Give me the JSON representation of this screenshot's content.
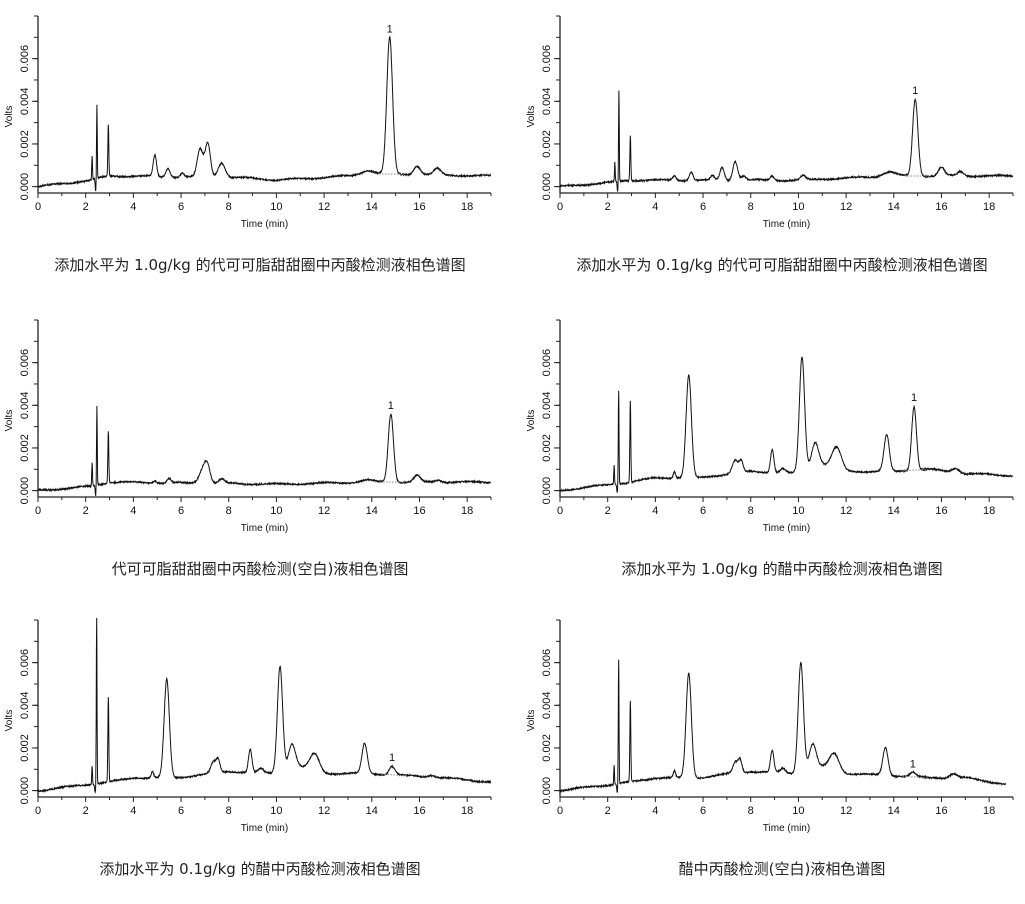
{
  "chart_data": [
    {
      "type": "line",
      "title": "添加水平为 1.0g/kg 的代可可脂甜甜圈中丙酸检测液相色谱图",
      "xlabel": "Time (min)",
      "ylabel": "Volts",
      "xlim": [
        0,
        19
      ],
      "ylim": [
        -0.0003,
        0.008
      ],
      "xticks": [
        0,
        2,
        4,
        6,
        8,
        10,
        12,
        14,
        16,
        18
      ],
      "yticks": [
        "0.000",
        "0.002",
        "0.004",
        "0.006"
      ],
      "end_time": 19,
      "peak_label": {
        "text": "1",
        "time": 14.75
      },
      "baseline": [
        [
          0,
          0
        ],
        [
          2.2,
          0.0003
        ],
        [
          3,
          0.0005
        ],
        [
          9,
          0.0004
        ],
        [
          10,
          0.0003
        ],
        [
          13,
          0.0005
        ],
        [
          14.3,
          0.0006
        ],
        [
          19,
          0.0005
        ]
      ],
      "peaks": [
        [
          2.27,
          0.0011,
          0.015
        ],
        [
          2.42,
          -0.0006,
          0.02
        ],
        [
          2.47,
          0.0035,
          0.015
        ],
        [
          2.95,
          0.0024,
          0.02
        ],
        [
          4.9,
          0.001,
          0.07
        ],
        [
          5.45,
          0.0004,
          0.09
        ],
        [
          6.05,
          0.0002,
          0.07
        ],
        [
          6.8,
          0.0013,
          0.12
        ],
        [
          7.12,
          0.0016,
          0.11
        ],
        [
          7.7,
          0.0007,
          0.15
        ],
        [
          13.8,
          0.0002,
          0.25
        ],
        [
          14.75,
          0.0064,
          0.12
        ],
        [
          15.9,
          0.0004,
          0.14
        ],
        [
          16.75,
          0.0003,
          0.14
        ]
      ]
    },
    {
      "type": "line",
      "title": "添加水平为 0.1g/kg 的代可可脂甜甜圈中丙酸检测液相色谱图",
      "xlabel": "Time (min)",
      "ylabel": "Volts",
      "xlim": [
        0,
        19
      ],
      "ylim": [
        -0.0003,
        0.008
      ],
      "xticks": [
        0,
        2,
        4,
        6,
        8,
        10,
        12,
        14,
        16,
        18
      ],
      "yticks": [
        "0.000",
        "0.002",
        "0.004",
        "0.006"
      ],
      "end_time": 19,
      "peak_label": {
        "text": "1",
        "time": 14.9
      },
      "baseline": [
        [
          0,
          0
        ],
        [
          2.2,
          0.0002
        ],
        [
          3,
          0.0003
        ],
        [
          10,
          0.0003
        ],
        [
          14,
          0.0005
        ],
        [
          19,
          0.0005
        ]
      ],
      "peaks": [
        [
          2.3,
          0.0009,
          0.015
        ],
        [
          2.42,
          -0.0005,
          0.02
        ],
        [
          2.47,
          0.0043,
          0.015
        ],
        [
          2.95,
          0.0021,
          0.02
        ],
        [
          4.8,
          0.0002,
          0.07
        ],
        [
          5.5,
          0.0004,
          0.08
        ],
        [
          6.4,
          0.0002,
          0.08
        ],
        [
          6.8,
          0.0006,
          0.09
        ],
        [
          7.35,
          0.0009,
          0.1
        ],
        [
          7.7,
          0.0002,
          0.1
        ],
        [
          8.9,
          0.0002,
          0.08
        ],
        [
          10.2,
          0.0002,
          0.1
        ],
        [
          13.8,
          0.0002,
          0.25
        ],
        [
          14.9,
          0.0036,
          0.11
        ],
        [
          16,
          0.0004,
          0.13
        ],
        [
          16.8,
          0.0002,
          0.13
        ]
      ]
    },
    {
      "type": "line",
      "title": "代可可脂甜甜圈中丙酸检测(空白)液相色谱图",
      "xlabel": "Time (min)",
      "ylabel": "Volts",
      "xlim": [
        0,
        19
      ],
      "ylim": [
        -0.0003,
        0.008
      ],
      "xticks": [
        0,
        2,
        4,
        6,
        8,
        10,
        12,
        14,
        16,
        18
      ],
      "yticks": [
        "0.000",
        "0.002",
        "0.004",
        "0.006"
      ],
      "end_time": 19,
      "peak_label": {
        "text": "1",
        "time": 14.8
      },
      "baseline": [
        [
          0,
          0
        ],
        [
          2.2,
          0.0002
        ],
        [
          3,
          0.0004
        ],
        [
          10,
          0.0003
        ],
        [
          14,
          0.0004
        ],
        [
          19,
          0.0004
        ]
      ],
      "peaks": [
        [
          2.27,
          0.0011,
          0.015
        ],
        [
          2.42,
          -0.0005,
          0.02
        ],
        [
          2.47,
          0.0037,
          0.015
        ],
        [
          2.95,
          0.0024,
          0.02
        ],
        [
          4.9,
          0.0001,
          0.07
        ],
        [
          5.5,
          0.0002,
          0.08
        ],
        [
          6.9,
          0.0006,
          0.15
        ],
        [
          7.1,
          0.0008,
          0.12
        ],
        [
          7.7,
          0.0002,
          0.12
        ],
        [
          13.8,
          0.0001,
          0.25
        ],
        [
          14.8,
          0.0032,
          0.11
        ],
        [
          15.9,
          0.0003,
          0.13
        ],
        [
          16.8,
          0.0001,
          0.13
        ]
      ]
    },
    {
      "type": "line",
      "title": "添加水平为 1.0g/kg 的醋中丙酸检测液相色谱图",
      "xlabel": "Time (min)",
      "ylabel": "Volts",
      "xlim": [
        0,
        19
      ],
      "ylim": [
        -0.0003,
        0.008
      ],
      "xticks": [
        0,
        2,
        4,
        6,
        8,
        10,
        12,
        14,
        16,
        18
      ],
      "yticks": [
        "0.000",
        "0.002",
        "0.004",
        "0.006"
      ],
      "end_time": 19,
      "peak_label": {
        "text": "1",
        "time": 14.85
      },
      "baseline": [
        [
          0,
          0
        ],
        [
          2.2,
          0.0003
        ],
        [
          3,
          0.0004
        ],
        [
          4,
          0.0006
        ],
        [
          5.8,
          0.0006
        ],
        [
          6.5,
          0.0007
        ],
        [
          8,
          0.0009
        ],
        [
          10,
          0.0008
        ],
        [
          11,
          0.0012
        ],
        [
          12,
          0.0009
        ],
        [
          14,
          0.0009
        ],
        [
          15.5,
          0.001
        ],
        [
          17,
          0.0008
        ],
        [
          19,
          0.0007
        ]
      ],
      "peaks": [
        [
          2.27,
          0.0009,
          0.015
        ],
        [
          2.4,
          -0.0004,
          0.02
        ],
        [
          2.46,
          0.0044,
          0.015
        ],
        [
          2.95,
          0.0038,
          0.02
        ],
        [
          4.8,
          0.0003,
          0.05
        ],
        [
          5.4,
          0.0048,
          0.11
        ],
        [
          7.35,
          0.0006,
          0.12
        ],
        [
          7.6,
          0.0005,
          0.08
        ],
        [
          8.9,
          0.0011,
          0.07
        ],
        [
          9.35,
          0.0002,
          0.1
        ],
        [
          10.15,
          0.0054,
          0.11
        ],
        [
          10.7,
          0.0012,
          0.15
        ],
        [
          11.6,
          0.001,
          0.2
        ],
        [
          13.7,
          0.0017,
          0.11
        ],
        [
          14.85,
          0.003,
          0.1
        ],
        [
          16.6,
          0.0002,
          0.15
        ]
      ]
    },
    {
      "type": "line",
      "title": "添加水平为 0.1g/kg 的醋中丙酸检测液相色谱图",
      "xlabel": "Time (min)",
      "ylabel": "Volts",
      "xlim": [
        0,
        19
      ],
      "ylim": [
        -0.0003,
        0.008
      ],
      "xticks": [
        0,
        2,
        4,
        6,
        8,
        10,
        12,
        14,
        16,
        18
      ],
      "yticks": [
        "0.000",
        "0.002",
        "0.004",
        "0.006"
      ],
      "end_time": 19,
      "peak_label": {
        "text": "1",
        "time": 14.85
      },
      "baseline": [
        [
          0,
          0
        ],
        [
          2.2,
          0.0003
        ],
        [
          3,
          0.0004
        ],
        [
          4,
          0.0006
        ],
        [
          5.8,
          0.0006
        ],
        [
          6.5,
          0.0007
        ],
        [
          8,
          0.0009
        ],
        [
          10,
          0.0008
        ],
        [
          11,
          0.0011
        ],
        [
          12,
          0.0008
        ],
        [
          14,
          0.0008
        ],
        [
          15.5,
          0.0007
        ],
        [
          17,
          0.0006
        ],
        [
          19,
          0.0004
        ]
      ],
      "peaks": [
        [
          2.27,
          0.0009,
          0.015
        ],
        [
          2.4,
          -0.0004,
          0.02
        ],
        [
          2.46,
          0.0078,
          0.015
        ],
        [
          2.95,
          0.004,
          0.02
        ],
        [
          4.8,
          0.0003,
          0.05
        ],
        [
          5.4,
          0.0046,
          0.11
        ],
        [
          7.35,
          0.0005,
          0.1
        ],
        [
          7.55,
          0.0006,
          0.08
        ],
        [
          8.9,
          0.0011,
          0.07
        ],
        [
          9.35,
          0.0002,
          0.1
        ],
        [
          10.15,
          0.005,
          0.11
        ],
        [
          10.65,
          0.0012,
          0.15
        ],
        [
          11.6,
          0.0008,
          0.2
        ],
        [
          13.7,
          0.0014,
          0.11
        ],
        [
          14.85,
          0.0004,
          0.12
        ],
        [
          16.5,
          0.0001,
          0.15
        ]
      ]
    },
    {
      "type": "line",
      "title": "醋中丙酸检测(空白)液相色谱图",
      "xlabel": "Time (min)",
      "ylabel": "Volts",
      "xlim": [
        0,
        19
      ],
      "ylim": [
        -0.0003,
        0.008
      ],
      "xticks": [
        0,
        2,
        4,
        6,
        8,
        10,
        12,
        14,
        16,
        18
      ],
      "yticks": [
        "0.000",
        "0.002",
        "0.004",
        "0.006"
      ],
      "end_time": 18.7,
      "peak_label": {
        "text": "1",
        "time": 14.8
      },
      "baseline": [
        [
          0,
          0
        ],
        [
          2.2,
          0.0003
        ],
        [
          3,
          0.0004
        ],
        [
          4,
          0.0006
        ],
        [
          5.8,
          0.0006
        ],
        [
          6.5,
          0.0007
        ],
        [
          8,
          0.0009
        ],
        [
          10,
          0.0008
        ],
        [
          11,
          0.0011
        ],
        [
          12,
          0.0008
        ],
        [
          14,
          0.0007
        ],
        [
          15.5,
          0.0006
        ],
        [
          17,
          0.0006
        ],
        [
          18.7,
          0.0003
        ]
      ],
      "peaks": [
        [
          2.27,
          0.0009,
          0.015
        ],
        [
          2.4,
          -0.0004,
          0.02
        ],
        [
          2.46,
          0.0058,
          0.015
        ],
        [
          2.95,
          0.0038,
          0.02
        ],
        [
          4.8,
          0.0003,
          0.05
        ],
        [
          5.4,
          0.0049,
          0.11
        ],
        [
          7.35,
          0.0005,
          0.1
        ],
        [
          7.55,
          0.0006,
          0.08
        ],
        [
          8.9,
          0.001,
          0.07
        ],
        [
          9.35,
          0.0002,
          0.1
        ],
        [
          10.1,
          0.0052,
          0.11
        ],
        [
          10.6,
          0.0012,
          0.15
        ],
        [
          11.5,
          0.0008,
          0.2
        ],
        [
          13.65,
          0.0013,
          0.11
        ],
        [
          14.8,
          0.0002,
          0.12
        ],
        [
          16.5,
          0.0002,
          0.15
        ]
      ]
    }
  ]
}
